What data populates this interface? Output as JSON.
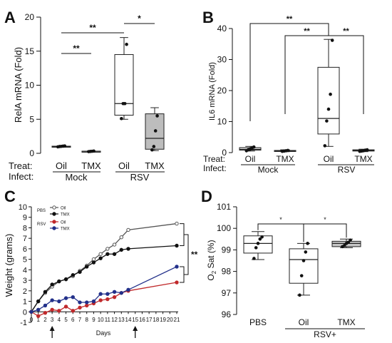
{
  "figure": {
    "panel_labels": [
      "A",
      "B",
      "C",
      "D"
    ]
  },
  "chart_data": [
    {
      "panel": "A",
      "type": "box",
      "ylabel": "RelA mRNA (Fold)",
      "ylim": [
        0,
        20
      ],
      "yticks": [
        0,
        5,
        10,
        15,
        20
      ],
      "row_labels": [
        "Treat:",
        "Infect:"
      ],
      "groups": [
        {
          "treat": "Oil",
          "infect": "Mock",
          "fill": "#ffffff",
          "box": {
            "min": 0.9,
            "q1": 0.95,
            "median": 1.0,
            "q3": 1.05,
            "max": 1.1
          },
          "points": [
            0.95,
            1.0,
            1.02,
            1.05,
            1.08
          ]
        },
        {
          "treat": "TMX",
          "infect": "Mock",
          "fill": "#bdbdbd",
          "box": {
            "min": 0.2,
            "q1": 0.25,
            "median": 0.3,
            "q3": 0.32,
            "max": 0.35
          },
          "points": [
            0.25,
            0.28,
            0.3,
            0.33
          ]
        },
        {
          "treat": "Oil",
          "infect": "RSV",
          "fill": "#ffffff",
          "box": {
            "min": 5.0,
            "q1": 5.6,
            "median": 7.3,
            "q3": 14.5,
            "max": 17.0
          },
          "points": [
            5.1,
            7.3,
            7.3,
            16.0
          ]
        },
        {
          "treat": "TMX",
          "infect": "RSV",
          "fill": "#bdbdbd",
          "box": {
            "min": 0.4,
            "q1": 0.6,
            "median": 2.2,
            "q3": 5.8,
            "max": 6.7
          },
          "points": [
            0.5,
            1.0,
            3.3,
            5.5
          ]
        }
      ],
      "infect_groups": [
        "Mock",
        "RSV"
      ],
      "significance": [
        {
          "from": 0,
          "to": 1,
          "label": "**"
        },
        {
          "from": 0,
          "to": 2,
          "label": "**"
        },
        {
          "from": 2,
          "to": 3,
          "label": "*"
        }
      ]
    },
    {
      "panel": "B",
      "type": "box",
      "ylabel": "IL6 mRNA (Fold)",
      "ylim": [
        0,
        40
      ],
      "yticks": [
        0,
        10,
        20,
        30,
        40
      ],
      "row_labels": [
        "Treat:",
        "Infect:"
      ],
      "groups": [
        {
          "treat": "Oil",
          "infect": "Mock",
          "fill": "#cfcfcf",
          "box": {
            "min": 0.5,
            "q1": 0.8,
            "median": 1.0,
            "q3": 1.6,
            "max": 2.0
          },
          "points": [
            0.6,
            0.9,
            1.1,
            1.5,
            1.8
          ]
        },
        {
          "treat": "TMX",
          "infect": "Mock",
          "fill": "#cfcfcf",
          "box": {
            "min": 0.3,
            "q1": 0.4,
            "median": 0.6,
            "q3": 0.7,
            "max": 0.9
          },
          "points": [
            0.4,
            0.5,
            0.6,
            0.7
          ]
        },
        {
          "treat": "Oil",
          "infect": "RSV",
          "fill": "#ffffff",
          "box": {
            "min": 2.0,
            "q1": 6.0,
            "median": 11.0,
            "q3": 27.5,
            "max": 36.5
          },
          "points": [
            2.2,
            10.2,
            14.0,
            18.8,
            36.2
          ]
        },
        {
          "treat": "TMX",
          "infect": "RSV",
          "fill": "#cfcfcf",
          "box": {
            "min": 0.3,
            "q1": 0.5,
            "median": 0.7,
            "q3": 0.9,
            "max": 1.1
          },
          "points": [
            0.4,
            0.5,
            0.6,
            0.8,
            0.9
          ]
        }
      ],
      "infect_groups": [
        "Mock",
        "RSV"
      ],
      "significance": [
        {
          "from": 0,
          "to": 2,
          "label": "**"
        },
        {
          "from": 1,
          "to": 2,
          "label": "**"
        },
        {
          "from": 2,
          "to": 3,
          "label": "**"
        }
      ]
    },
    {
      "panel": "C",
      "type": "line",
      "ylabel": "Weight (grams)",
      "xlabel": "Days",
      "ylim": [
        -1,
        10
      ],
      "yticks": [
        -1,
        0,
        1,
        2,
        3,
        4,
        5,
        6,
        7,
        8,
        9,
        10
      ],
      "xticks": [
        0,
        1,
        2,
        3,
        4,
        5,
        6,
        7,
        8,
        9,
        10,
        11,
        12,
        13,
        14,
        15,
        16,
        17,
        18,
        19,
        20,
        21
      ],
      "xtick_labels": [
        "0",
        "1",
        "2",
        "3",
        "4",
        "5",
        "6",
        "7",
        "8",
        "9",
        "10",
        "11",
        "12",
        "13",
        "14",
        "15",
        "16",
        "17",
        "18",
        "19",
        "20",
        "21"
      ],
      "arrows_at_days": [
        3,
        15
      ],
      "legend_groups": [
        {
          "label": "PBS",
          "entries": [
            "Oil",
            "TMX"
          ]
        },
        {
          "label": "RSV",
          "entries": [
            "Oil",
            "TMX"
          ]
        }
      ],
      "series": [
        {
          "name": "PBS Oil",
          "legend_text": "Oil",
          "color": "#555555",
          "marker": "open",
          "x": [
            0,
            1,
            2,
            3,
            4,
            5,
            6,
            7,
            8,
            9,
            10,
            11,
            12,
            13,
            14,
            21
          ],
          "y": [
            0,
            1.0,
            1.8,
            2.4,
            2.9,
            3.1,
            3.4,
            3.9,
            4.4,
            5.0,
            5.5,
            6.0,
            6.4,
            7.1,
            7.8,
            8.4
          ]
        },
        {
          "name": "PBS TMX",
          "legend_text": "TMX",
          "color": "#111111",
          "marker": "filled",
          "x": [
            0,
            1,
            2,
            3,
            4,
            5,
            6,
            7,
            8,
            9,
            10,
            11,
            12,
            13,
            14,
            21
          ],
          "y": [
            0,
            1.0,
            1.9,
            2.6,
            2.9,
            3.1,
            3.5,
            3.8,
            4.3,
            4.7,
            5.1,
            5.5,
            5.5,
            5.9,
            6.0,
            6.3
          ]
        },
        {
          "name": "RSV Oil",
          "legend_text": "Oil",
          "color": "#c0292b",
          "marker": "filled",
          "x": [
            0,
            1,
            2,
            3,
            4,
            5,
            6,
            7,
            8,
            9,
            10,
            11,
            12,
            13,
            14,
            21
          ],
          "y": [
            0,
            -0.4,
            -0.1,
            0.2,
            0.1,
            0.5,
            0.1,
            0.4,
            0.6,
            0.8,
            1.1,
            1.2,
            1.4,
            1.8,
            2.0,
            2.8
          ]
        },
        {
          "name": "RSV TMX",
          "legend_text": "TMX",
          "color": "#22308a",
          "marker": "filled",
          "x": [
            0,
            1,
            2,
            3,
            4,
            5,
            6,
            7,
            8,
            9,
            10,
            11,
            12,
            13,
            14,
            21
          ],
          "y": [
            0,
            0.2,
            0.6,
            1.1,
            1.0,
            1.3,
            1.4,
            0.9,
            0.9,
            1.0,
            1.7,
            1.7,
            1.9,
            1.8,
            2.1,
            4.3
          ]
        }
      ],
      "significance": [
        {
          "label": "**"
        }
      ]
    },
    {
      "panel": "D",
      "type": "box",
      "ylabel": "O2 Sat (%)",
      "ylabel_base": "O",
      "ylabel_sub": "2",
      "ylabel_rest": " Sat (%)",
      "ylim": [
        96,
        101
      ],
      "yticks": [
        96,
        97,
        98,
        99,
        100,
        101
      ],
      "groups": [
        {
          "label": "PBS",
          "fill": "#ffffff",
          "box": {
            "min": 98.55,
            "q1": 98.85,
            "median": 99.3,
            "q3": 99.65,
            "max": 99.85
          },
          "points": [
            98.6,
            99.1,
            99.3,
            99.5,
            99.6
          ]
        },
        {
          "label": "Oil",
          "fill": "#ffffff",
          "box": {
            "min": 96.9,
            "q1": 97.45,
            "median": 98.55,
            "q3": 99.05,
            "max": 99.3
          },
          "points": [
            96.9,
            97.8,
            98.5,
            98.9,
            99.3
          ]
        },
        {
          "label": "TMX",
          "fill": "#c8c8c8",
          "box": {
            "min": 99.1,
            "q1": 99.15,
            "median": 99.3,
            "q3": 99.4,
            "max": 99.5
          },
          "points": [
            99.15,
            99.2,
            99.3,
            99.35,
            99.45
          ]
        }
      ],
      "group_caption": "RSV+",
      "significance": [
        {
          "from": 0,
          "to": 1,
          "label": "*"
        },
        {
          "from": 1,
          "to": 2,
          "label": "*"
        }
      ]
    }
  ]
}
